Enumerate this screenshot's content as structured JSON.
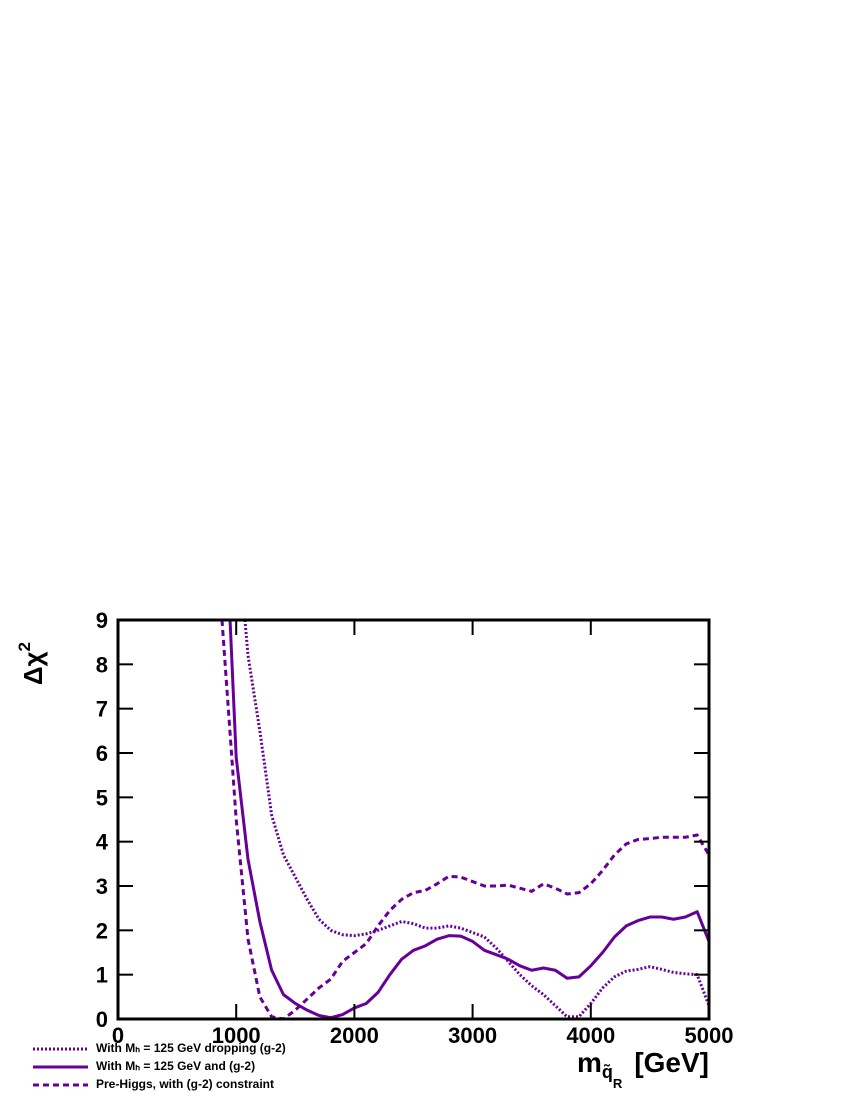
{
  "chart_data": {
    "type": "line",
    "xlabel": {
      "symbol": "m",
      "subscript": "q̃",
      "sub_subscript": "R",
      "unit": "[GeV]"
    },
    "ylabel": {
      "symbol": "Δχ",
      "superscript": "2"
    },
    "xlim": [
      0,
      5000
    ],
    "xticks": [
      0,
      1000,
      2000,
      3000,
      4000,
      5000
    ],
    "ylim": [
      0,
      9
    ],
    "yticks": [
      0,
      1,
      2,
      3,
      4,
      5,
      6,
      7,
      8,
      9
    ],
    "series": [
      {
        "name": "With Mₕ = 125 GeV dropping (g-2)",
        "color": "#660099",
        "style": "dotted",
        "x": [
          1074,
          1100,
          1200,
          1300,
          1400,
          1500,
          1600,
          1700,
          1800,
          1900,
          2000,
          2100,
          2200,
          2300,
          2400,
          2500,
          2600,
          2700,
          2800,
          2900,
          3000,
          3100,
          3200,
          3300,
          3400,
          3500,
          3600,
          3700,
          3800,
          3900,
          4000,
          4100,
          4200,
          4300,
          4400,
          4500,
          4600,
          4700,
          4800,
          4900,
          5000
        ],
        "values": [
          9,
          8.2,
          6.5,
          4.6,
          3.7,
          3.2,
          2.7,
          2.25,
          2.0,
          1.9,
          1.88,
          1.92,
          2.0,
          2.1,
          2.2,
          2.15,
          2.05,
          2.05,
          2.1,
          2.05,
          1.95,
          1.85,
          1.6,
          1.3,
          1.0,
          0.75,
          0.55,
          0.3,
          0.05,
          0.05,
          0.35,
          0.7,
          0.95,
          1.08,
          1.12,
          1.18,
          1.12,
          1.05,
          1.02,
          1.0,
          0.3
        ]
      },
      {
        "name": "With Mₕ = 125 GeV and (g-2)",
        "color": "#660099",
        "style": "solid",
        "x": [
          948,
          1000,
          1100,
          1200,
          1300,
          1400,
          1500,
          1600,
          1700,
          1800,
          1900,
          2000,
          2100,
          2200,
          2300,
          2400,
          2500,
          2600,
          2700,
          2800,
          2900,
          3000,
          3100,
          3200,
          3300,
          3400,
          3500,
          3600,
          3700,
          3800,
          3900,
          4000,
          4100,
          4200,
          4300,
          4400,
          4500,
          4600,
          4700,
          4800,
          4900,
          5000
        ],
        "values": [
          9,
          5.9,
          3.6,
          2.2,
          1.1,
          0.55,
          0.35,
          0.2,
          0.08,
          0.03,
          0.1,
          0.25,
          0.35,
          0.6,
          1.0,
          1.35,
          1.55,
          1.65,
          1.8,
          1.88,
          1.87,
          1.75,
          1.55,
          1.45,
          1.35,
          1.2,
          1.1,
          1.15,
          1.1,
          0.92,
          0.95,
          1.2,
          1.5,
          1.85,
          2.1,
          2.22,
          2.3,
          2.3,
          2.25,
          2.3,
          2.42,
          1.75
        ]
      },
      {
        "name": "Pre-Higgs, with (g-2) constraint",
        "color": "#660099",
        "style": "dashed",
        "x": [
          880,
          1000,
          1100,
          1200,
          1300,
          1400,
          1500,
          1600,
          1700,
          1800,
          1900,
          2000,
          2100,
          2200,
          2300,
          2400,
          2500,
          2600,
          2700,
          2800,
          2900,
          3000,
          3100,
          3200,
          3300,
          3400,
          3500,
          3600,
          3700,
          3800,
          3900,
          4000,
          4100,
          4200,
          4300,
          4400,
          4500,
          4600,
          4700,
          4800,
          4900,
          5000
        ],
        "values": [
          9,
          4.5,
          1.8,
          0.5,
          0.05,
          0.0,
          0.2,
          0.45,
          0.7,
          0.9,
          1.3,
          1.5,
          1.7,
          2.1,
          2.45,
          2.7,
          2.85,
          2.9,
          3.05,
          3.22,
          3.2,
          3.1,
          3.0,
          3.0,
          3.02,
          2.95,
          2.88,
          3.05,
          2.95,
          2.82,
          2.85,
          3.05,
          3.35,
          3.7,
          3.95,
          4.05,
          4.07,
          4.1,
          4.1,
          4.1,
          4.15,
          3.7
        ]
      }
    ]
  }
}
